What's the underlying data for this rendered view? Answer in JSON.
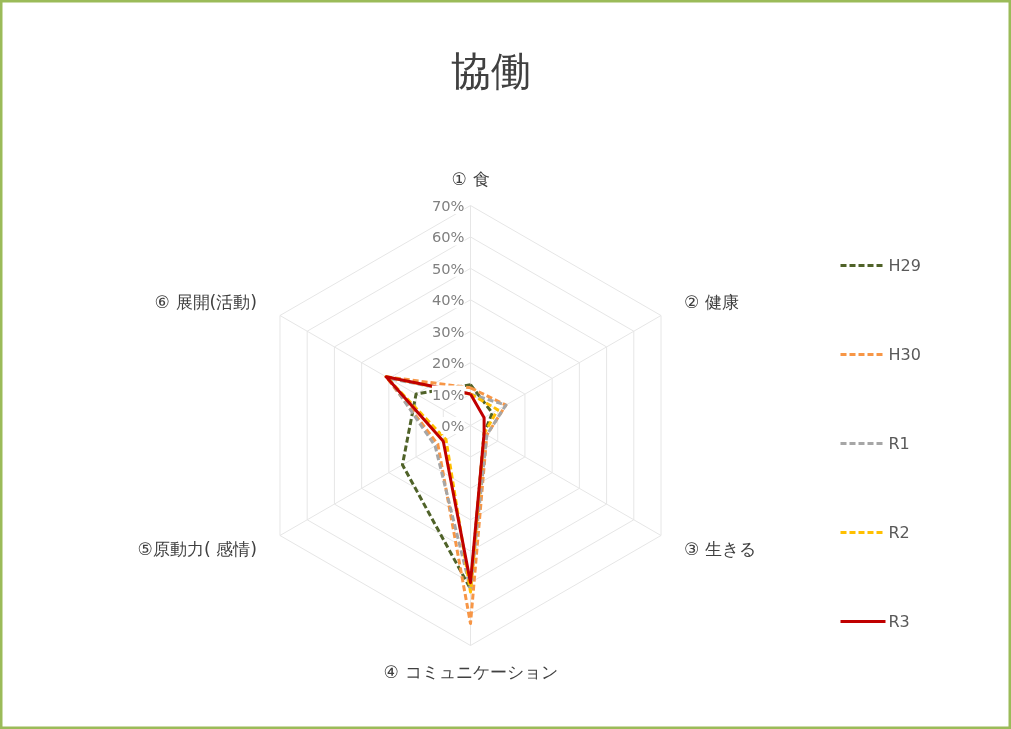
{
  "chart_data": {
    "type": "radar",
    "title": "協働",
    "categories": [
      "① 食",
      "② 健康",
      "③ 生きる",
      "④ コミュニケーション",
      "⑤原動力( 感情)",
      "⑥ 展開(活動)"
    ],
    "ylim": [
      0,
      70
    ],
    "yticks": [
      {
        "value": 0,
        "label": "0%"
      },
      {
        "value": 10,
        "label": "10%"
      },
      {
        "value": 20,
        "label": "20%"
      },
      {
        "value": 30,
        "label": "30%"
      },
      {
        "value": 40,
        "label": "40%"
      },
      {
        "value": 50,
        "label": "50%"
      },
      {
        "value": 60,
        "label": "60%"
      },
      {
        "value": 70,
        "label": "70%"
      }
    ],
    "grid": true,
    "legend": "right",
    "marker": "none",
    "series": [
      {
        "name": "H29",
        "color": "#4f6228",
        "line_style": "dashed",
        "values": [
          13,
          8,
          5,
          52,
          25,
          20
        ]
      },
      {
        "name": "H30",
        "color": "#f79646",
        "line_style": "dashed",
        "values": [
          12,
          13,
          6,
          63,
          12,
          31
        ]
      },
      {
        "name": "R1",
        "color": "#a6a6a6",
        "line_style": "dashed",
        "values": [
          10,
          13,
          6,
          52,
          13,
          30
        ]
      },
      {
        "name": "R2",
        "color": "#ffc000",
        "line_style": "dashed",
        "values": [
          10,
          10,
          5,
          53,
          9,
          31
        ]
      },
      {
        "name": "R3",
        "color": "#c00000",
        "line_style": "solid",
        "values": [
          10,
          5,
          5,
          50,
          10,
          31
        ]
      }
    ]
  }
}
